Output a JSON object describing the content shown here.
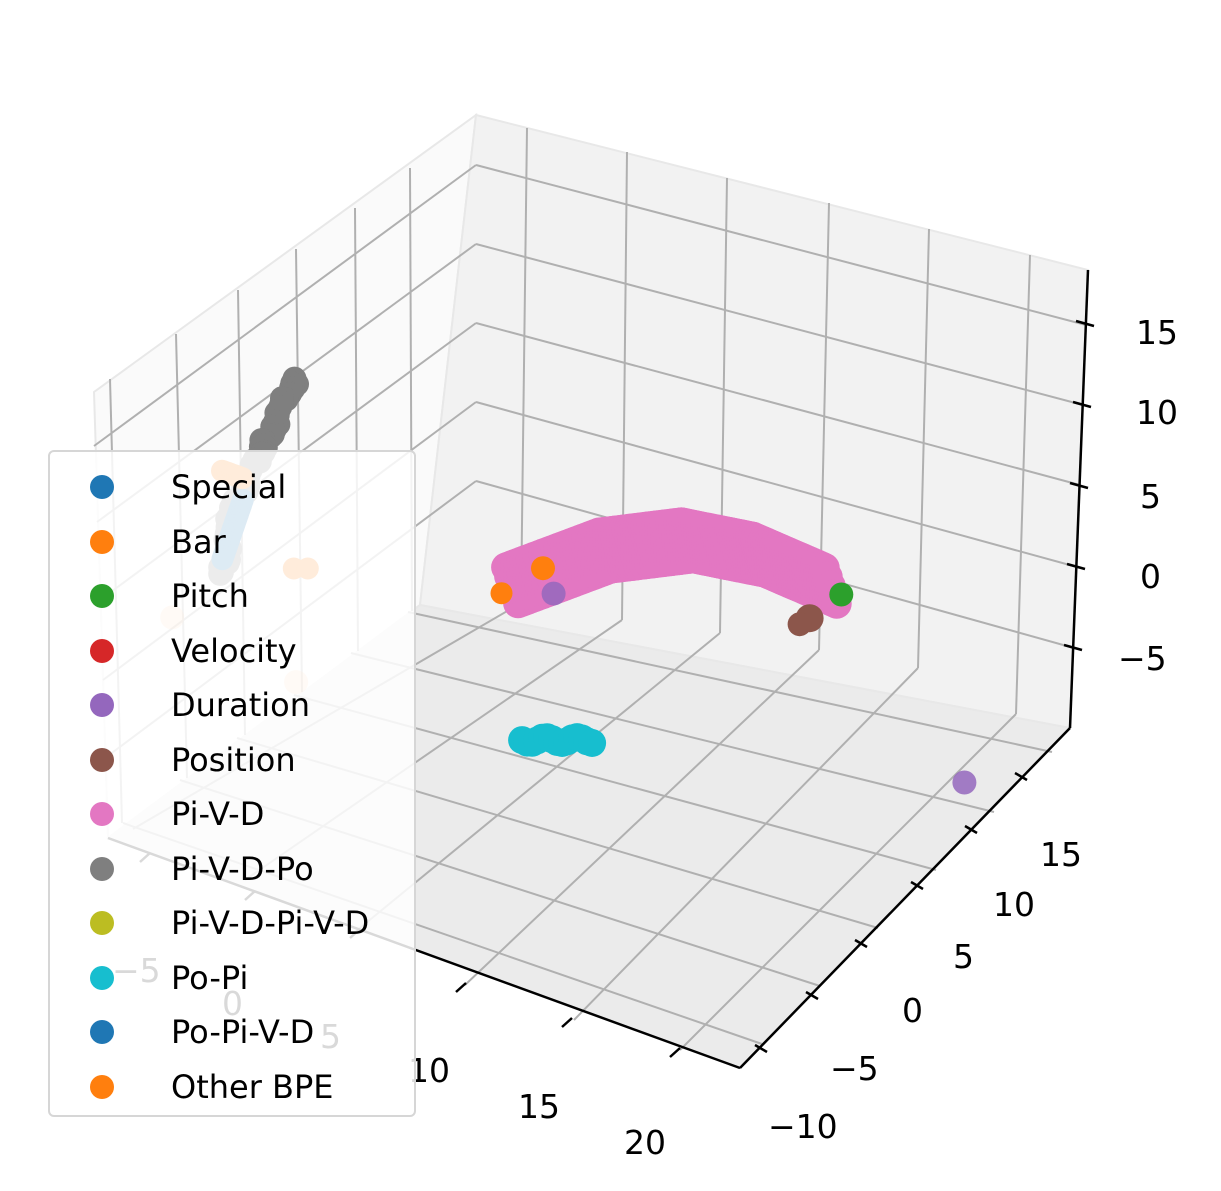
{
  "chart_data": {
    "type": "scatter",
    "projection": "3d",
    "grid": true,
    "legend_position": "lower-left",
    "axes": {
      "x": {
        "ticks": [
          "−5",
          "0",
          "5",
          "10",
          "15",
          "20"
        ]
      },
      "y": {
        "ticks": [
          "−10",
          "−5",
          "0",
          "5",
          "10",
          "15"
        ]
      },
      "z": {
        "ticks": [
          "−5",
          "0",
          "5",
          "10",
          "15"
        ]
      }
    },
    "series": [
      {
        "name": "Special",
        "color": "#1f77b4",
        "points": [
          [
            -5.5,
            12,
            10
          ],
          [
            -6.5,
            12,
            6
          ]
        ]
      },
      {
        "name": "Bar",
        "color": "#ff7f0e",
        "points": [
          [
            -6,
            13,
            12
          ],
          [
            -5,
            13,
            12
          ],
          [
            -3,
            12,
            7
          ],
          [
            3,
            0,
            4
          ],
          [
            2,
            2,
            3
          ]
        ]
      },
      {
        "name": "Pitch",
        "color": "#2ca02c",
        "points": [
          [
            14,
            -7,
            4
          ]
        ]
      },
      {
        "name": "Velocity",
        "color": "#d62728",
        "points": []
      },
      {
        "name": "Duration",
        "color": "#9467bd",
        "points": [
          [
            3,
            -1,
            2
          ],
          [
            19,
            -9,
            -6
          ]
        ]
      },
      {
        "name": "Position",
        "color": "#8c564b",
        "points": [
          [
            14,
            -4,
            4
          ]
        ]
      },
      {
        "name": "Pi-V-D",
        "color": "#e377c2",
        "points": [
          [
            2,
            1,
            3
          ],
          [
            5,
            -2,
            5
          ],
          [
            8,
            -4,
            6
          ],
          [
            11,
            -5,
            6
          ],
          [
            14,
            -6,
            5
          ]
        ]
      },
      {
        "name": "Pi-V-D-Po",
        "color": "#7f7f7f",
        "points": [
          [
            -4,
            10,
            17
          ],
          [
            -5,
            11,
            13
          ],
          [
            -6,
            12,
            9
          ],
          [
            -6.5,
            12,
            5
          ]
        ]
      },
      {
        "name": "Pi-V-D-Pi-V-D",
        "color": "#bcbd22",
        "points": []
      },
      {
        "name": "Po-Pi",
        "color": "#17becf",
        "points": [
          [
            5,
            3,
            -4
          ]
        ]
      },
      {
        "name": "Po-Pi-V-D",
        "color": "#1f77b4",
        "points": []
      },
      {
        "name": "Other BPE",
        "color": "#ff7f0e",
        "points": [
          [
            -10,
            10,
            0
          ],
          [
            -6,
            6,
            -4
          ]
        ]
      }
    ]
  }
}
